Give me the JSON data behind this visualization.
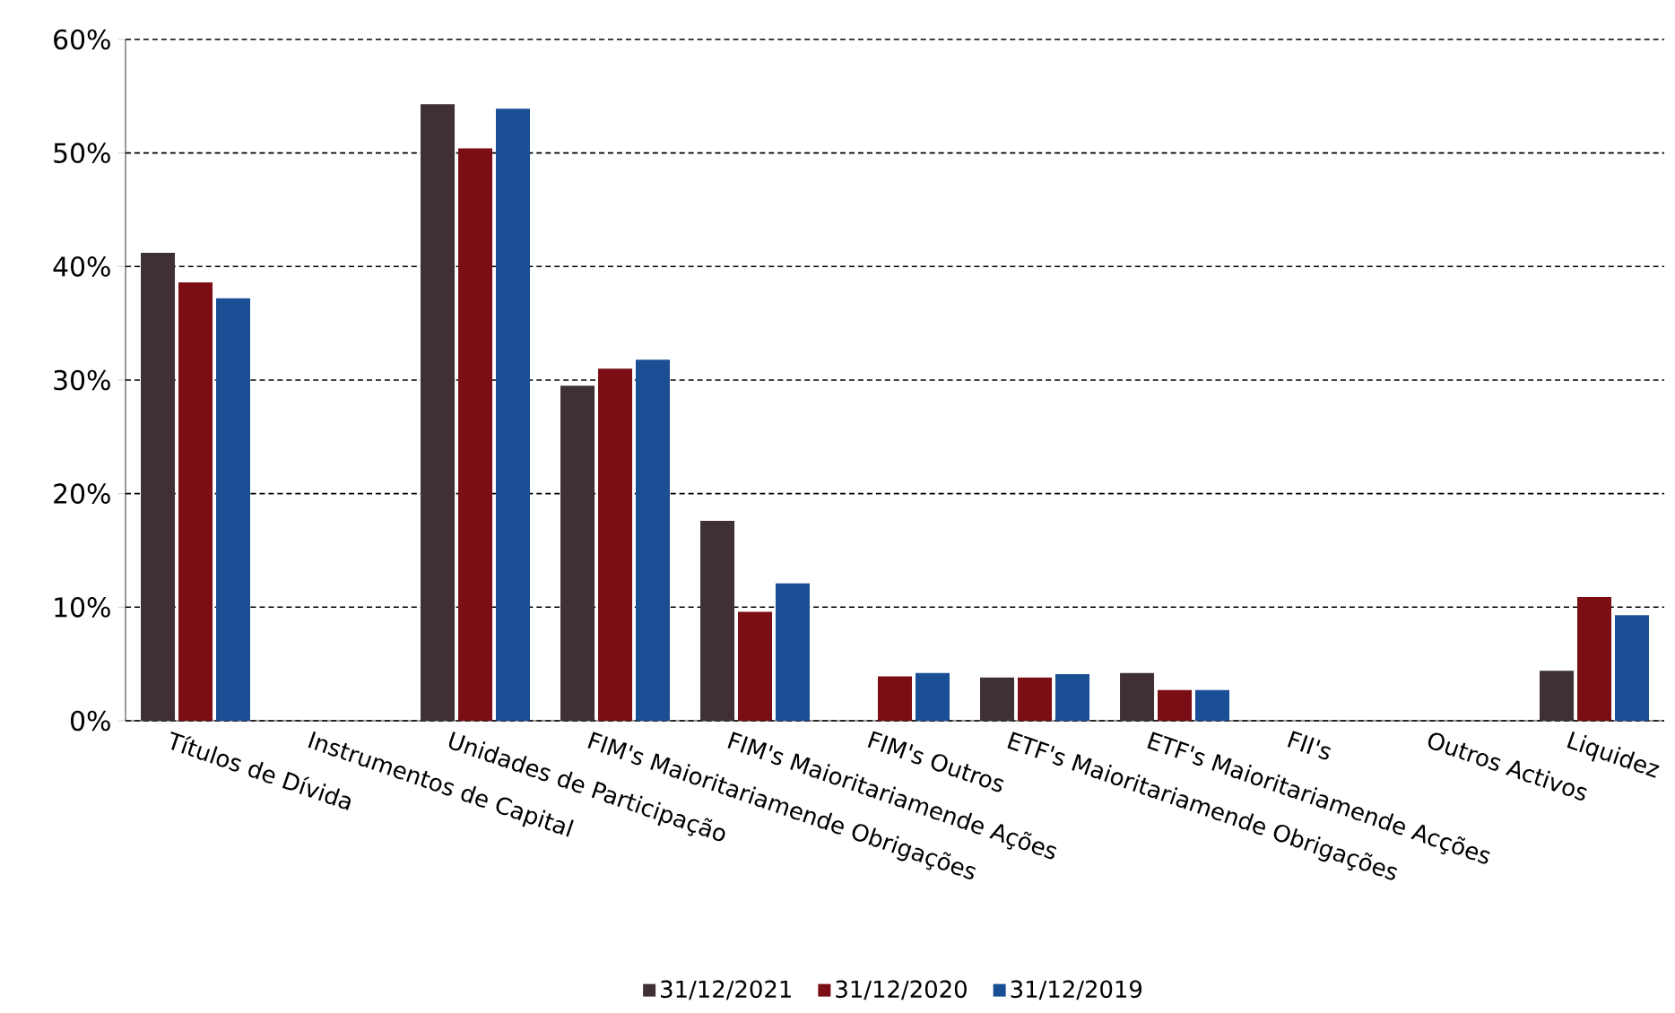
{
  "chart_data": {
    "type": "bar",
    "categories": [
      "Títulos de Dívida",
      "Instrumentos de Capital",
      "Unidades de Participação",
      "FIM's Maioritariamende Obrigações",
      "FIM's Maioritariamende Ações",
      "FIM's Outros",
      "ETF's Maioritariamende Obrigações",
      "ETF's Maioritariamende Acções",
      "FII's",
      "Outros Activos",
      "Liquidez"
    ],
    "series": [
      {
        "name": "31/12/2021",
        "color": "#3f3035",
        "values": [
          41.2,
          0,
          54.3,
          29.5,
          17.6,
          0,
          3.8,
          4.2,
          0,
          0,
          4.4
        ]
      },
      {
        "name": "31/12/2020",
        "color": "#7b0e14",
        "values": [
          38.6,
          0,
          50.4,
          31.0,
          9.6,
          3.9,
          3.8,
          2.7,
          0,
          0,
          10.9
        ]
      },
      {
        "name": "31/12/2019",
        "color": "#1a4f96",
        "values": [
          37.2,
          0,
          53.9,
          31.8,
          12.1,
          4.2,
          4.1,
          2.7,
          0,
          0,
          9.3
        ]
      }
    ],
    "ylim": [
      0,
      60
    ],
    "yticks": [
      {
        "value": 0,
        "label": "0%"
      },
      {
        "value": 10,
        "label": "10%"
      },
      {
        "value": 20,
        "label": "20%"
      },
      {
        "value": 30,
        "label": "30%"
      },
      {
        "value": 40,
        "label": "40%"
      },
      {
        "value": 50,
        "label": "50%"
      },
      {
        "value": 60,
        "label": "60%"
      }
    ],
    "grid": "y",
    "legend": "bottom"
  }
}
